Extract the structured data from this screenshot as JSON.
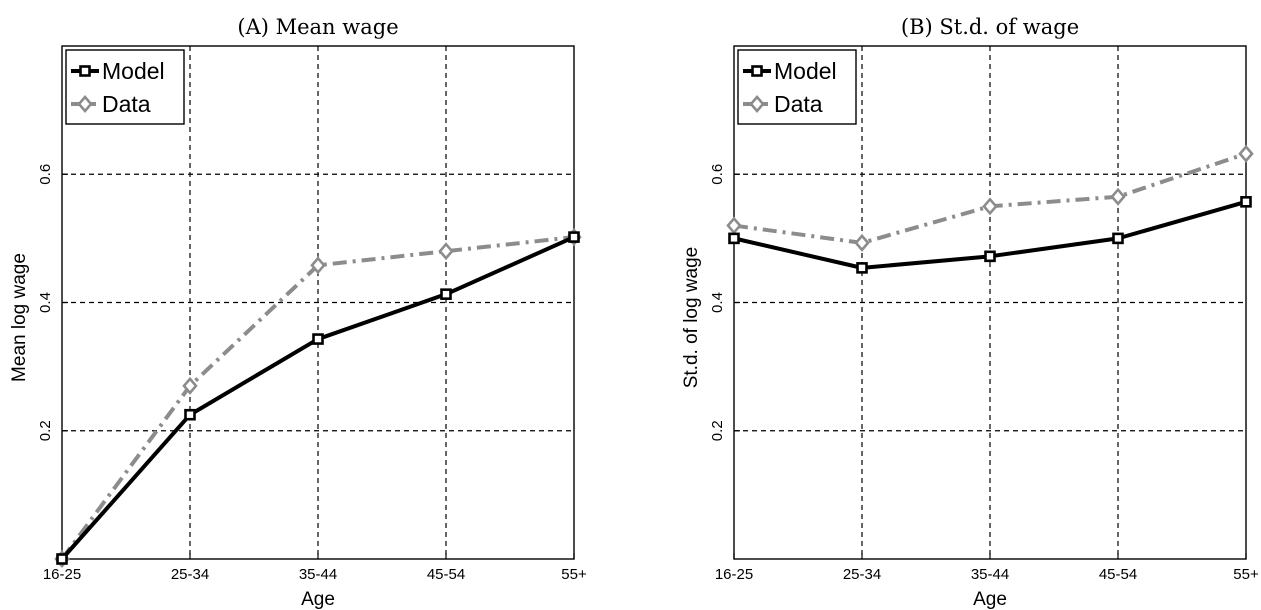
{
  "chart_data": [
    {
      "type": "line",
      "title": "(A) Mean wage",
      "xlabel": "Age",
      "ylabel": "Mean log wage",
      "categories": [
        "16-25",
        "25-34",
        "35-44",
        "45-54",
        "55+"
      ],
      "ylim": [
        0,
        0.8
      ],
      "yticks": [
        0.2,
        0.4,
        0.6
      ],
      "ytick_labels": [
        "0.2",
        "0.4",
        "0.6"
      ],
      "grid": true,
      "legend_position": "top-left",
      "series": [
        {
          "name": "Model",
          "values": [
            0.0,
            0.225,
            0.343,
            0.413,
            0.502
          ],
          "color": "#000000",
          "marker": "square",
          "line_style": "solid"
        },
        {
          "name": "Data",
          "values": [
            0.0,
            0.27,
            0.458,
            0.48,
            0.502
          ],
          "color": "#8c8c8c",
          "marker": "diamond",
          "line_style": "dash-dot"
        }
      ]
    },
    {
      "type": "line",
      "title": "(B) St.d. of wage",
      "xlabel": "Age",
      "ylabel": "St.d. of log wage",
      "categories": [
        "16-25",
        "25-34",
        "35-44",
        "45-54",
        "55+"
      ],
      "ylim": [
        0,
        0.8
      ],
      "yticks": [
        0.2,
        0.4,
        0.6
      ],
      "ytick_labels": [
        "0.2",
        "0.4",
        "0.6"
      ],
      "grid": true,
      "legend_position": "top-left",
      "series": [
        {
          "name": "Model",
          "values": [
            0.5,
            0.454,
            0.472,
            0.5,
            0.557
          ],
          "color": "#000000",
          "marker": "square",
          "line_style": "solid"
        },
        {
          "name": "Data",
          "values": [
            0.52,
            0.493,
            0.55,
            0.565,
            0.632
          ],
          "color": "#8c8c8c",
          "marker": "diamond",
          "line_style": "dash-dot"
        }
      ]
    }
  ]
}
